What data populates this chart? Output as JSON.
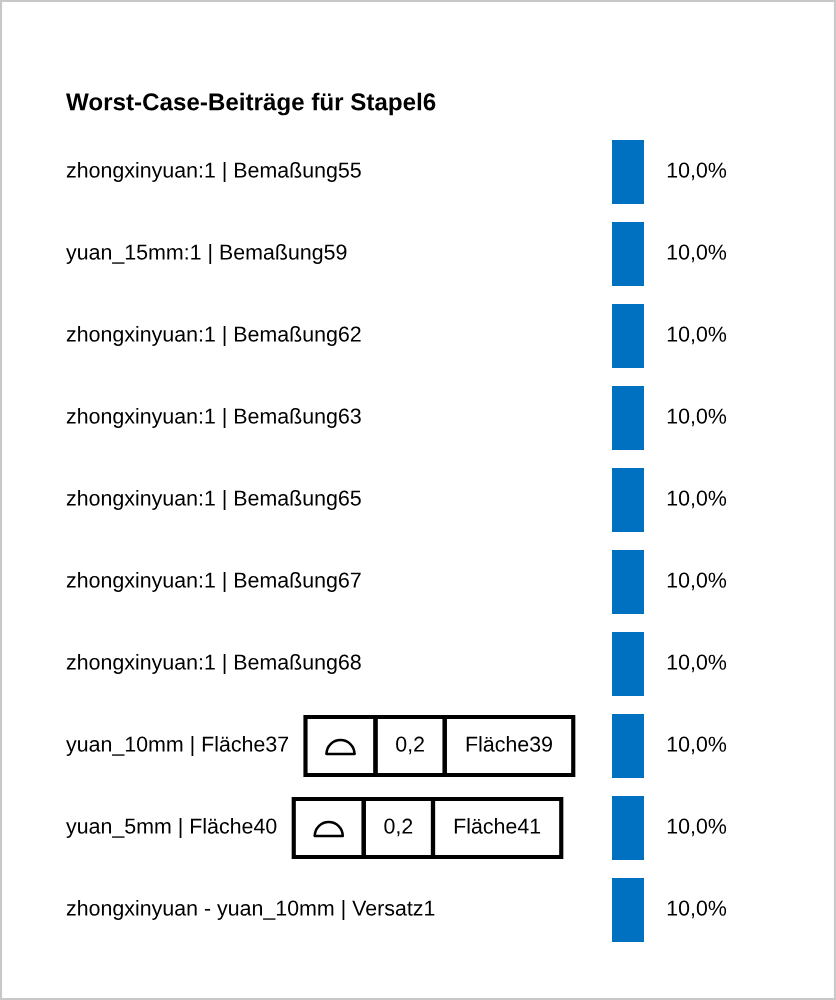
{
  "chart_data": {
    "type": "bar",
    "orientation": "horizontal",
    "title": "Worst-Case-Beiträge für Stapel6",
    "categories": [
      "zhongxinyuan:1 | Bemaßung55",
      "yuan_15mm:1 | Bemaßung59",
      "zhongxinyuan:1 | Bemaßung62",
      "zhongxinyuan:1 | Bemaßung63",
      "zhongxinyuan:1 | Bemaßung65",
      "zhongxinyuan:1 | Bemaßung67",
      "zhongxinyuan:1 | Bemaßung68",
      "yuan_10mm | Fläche37",
      "yuan_5mm | Fläche40",
      "zhongxinyuan - yuan_10mm | Versatz1"
    ],
    "values": [
      10.0,
      10.0,
      10.0,
      10.0,
      10.0,
      10.0,
      10.0,
      10.0,
      10.0,
      10.0
    ],
    "value_labels": [
      "10,0%",
      "10,0%",
      "10,0%",
      "10,0%",
      "10,0%",
      "10,0%",
      "10,0%",
      "10,0%",
      "10,0%",
      "10,0%"
    ],
    "color": "#0070c0",
    "tick_labels": "y",
    "annotations": [
      "0,2",
      "Fläche39",
      "0,2",
      "Fläche41"
    ]
  }
}
